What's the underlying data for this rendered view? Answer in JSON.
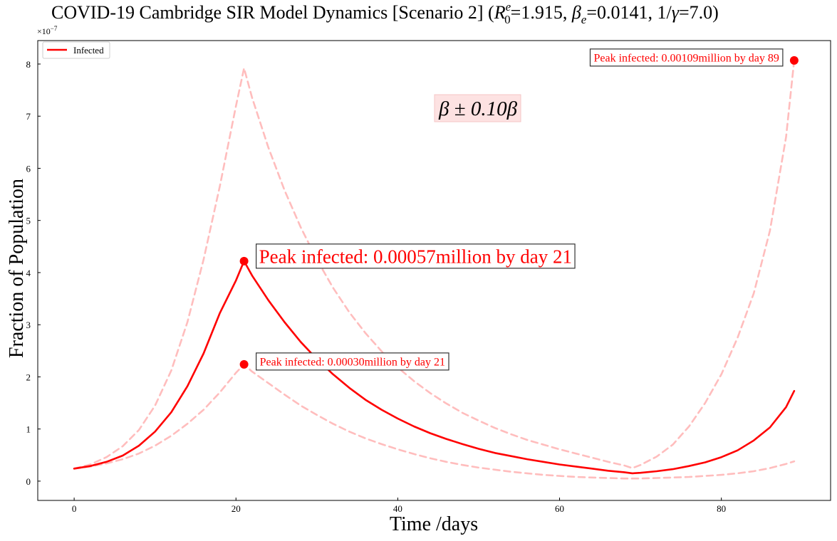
{
  "chart_data": {
    "type": "line",
    "title": {
      "prefix": "COVID-19 Cambridge SIR Model Dynamics [Scenario 2] (",
      "r0_symbol": "R",
      "r0_sup": "e",
      "r0_sub": "0",
      "r0_value": "=1.915, ",
      "beta_symbol": "β",
      "beta_sub": "e",
      "beta_value": "=0.0141, 1/",
      "gamma_symbol": "γ",
      "gamma_value": "=7.0)"
    },
    "xlabel": "Time /days",
    "ylabel": "Fraction of Population",
    "y_offset_label": "×10",
    "y_offset_exp": "−7",
    "xlim": [
      -4.5,
      93.5
    ],
    "ylim": [
      -0.37,
      8.45
    ],
    "x_ticks": [
      0,
      20,
      40,
      60,
      80
    ],
    "x_tick_labels": [
      "0",
      "20",
      "40",
      "60",
      "80"
    ],
    "y_ticks": [
      0,
      1,
      2,
      3,
      4,
      5,
      6,
      7,
      8
    ],
    "y_tick_labels": [
      "0",
      "1",
      "2",
      "3",
      "4",
      "5",
      "6",
      "7",
      "8"
    ],
    "grid": false,
    "legend": {
      "position": "top-left",
      "entries": [
        "Infected"
      ]
    },
    "band_label": "β ± 0.10β",
    "series": [
      {
        "name": "Infected",
        "role": "main",
        "color": "#ff0000",
        "style": "solid",
        "points": [
          [
            0,
            0.24
          ],
          [
            2,
            0.29
          ],
          [
            4,
            0.37
          ],
          [
            6,
            0.49
          ],
          [
            8,
            0.68
          ],
          [
            10,
            0.95
          ],
          [
            12,
            1.32
          ],
          [
            14,
            1.82
          ],
          [
            16,
            2.45
          ],
          [
            18,
            3.22
          ],
          [
            20,
            3.85
          ],
          [
            21,
            4.22
          ],
          [
            22,
            3.94
          ],
          [
            24,
            3.47
          ],
          [
            26,
            3.05
          ],
          [
            28,
            2.67
          ],
          [
            30,
            2.34
          ],
          [
            32,
            2.05
          ],
          [
            34,
            1.79
          ],
          [
            36,
            1.56
          ],
          [
            38,
            1.37
          ],
          [
            40,
            1.2
          ],
          [
            42,
            1.05
          ],
          [
            44,
            0.92
          ],
          [
            46,
            0.81
          ],
          [
            48,
            0.71
          ],
          [
            50,
            0.62
          ],
          [
            52,
            0.54
          ],
          [
            54,
            0.48
          ],
          [
            56,
            0.42
          ],
          [
            58,
            0.37
          ],
          [
            60,
            0.32
          ],
          [
            62,
            0.28
          ],
          [
            64,
            0.24
          ],
          [
            66,
            0.2
          ],
          [
            68,
            0.17
          ],
          [
            69,
            0.15
          ],
          [
            70,
            0.16
          ],
          [
            72,
            0.19
          ],
          [
            74,
            0.23
          ],
          [
            76,
            0.29
          ],
          [
            78,
            0.36
          ],
          [
            80,
            0.46
          ],
          [
            82,
            0.59
          ],
          [
            84,
            0.78
          ],
          [
            86,
            1.03
          ],
          [
            88,
            1.42
          ],
          [
            89,
            1.73
          ]
        ]
      },
      {
        "role": "upper-bound",
        "color": "#ffbdbd",
        "style": "dashed",
        "points": [
          [
            0,
            0.24
          ],
          [
            2,
            0.32
          ],
          [
            4,
            0.46
          ],
          [
            6,
            0.67
          ],
          [
            8,
            0.98
          ],
          [
            10,
            1.45
          ],
          [
            12,
            2.12
          ],
          [
            14,
            3.05
          ],
          [
            16,
            4.25
          ],
          [
            18,
            5.65
          ],
          [
            20,
            7.2
          ],
          [
            21,
            7.92
          ],
          [
            22,
            7.35
          ],
          [
            24,
            6.4
          ],
          [
            26,
            5.58
          ],
          [
            28,
            4.87
          ],
          [
            30,
            4.25
          ],
          [
            32,
            3.71
          ],
          [
            34,
            3.24
          ],
          [
            36,
            2.84
          ],
          [
            38,
            2.49
          ],
          [
            40,
            2.18
          ],
          [
            42,
            1.92
          ],
          [
            44,
            1.69
          ],
          [
            46,
            1.49
          ],
          [
            48,
            1.31
          ],
          [
            50,
            1.16
          ],
          [
            52,
            1.02
          ],
          [
            54,
            0.9
          ],
          [
            56,
            0.79
          ],
          [
            58,
            0.7
          ],
          [
            60,
            0.61
          ],
          [
            62,
            0.53
          ],
          [
            64,
            0.45
          ],
          [
            66,
            0.37
          ],
          [
            68,
            0.3
          ],
          [
            69,
            0.25
          ],
          [
            70,
            0.31
          ],
          [
            72,
            0.47
          ],
          [
            74,
            0.7
          ],
          [
            76,
            1.05
          ],
          [
            78,
            1.5
          ],
          [
            80,
            2.05
          ],
          [
            82,
            2.75
          ],
          [
            84,
            3.6
          ],
          [
            86,
            4.8
          ],
          [
            88,
            6.6
          ],
          [
            89,
            8.07
          ]
        ]
      },
      {
        "role": "lower-bound",
        "color": "#ffbdbd",
        "style": "dashed",
        "points": [
          [
            0,
            0.24
          ],
          [
            2,
            0.28
          ],
          [
            4,
            0.34
          ],
          [
            6,
            0.42
          ],
          [
            8,
            0.53
          ],
          [
            10,
            0.68
          ],
          [
            12,
            0.87
          ],
          [
            14,
            1.1
          ],
          [
            16,
            1.37
          ],
          [
            18,
            1.7
          ],
          [
            20,
            2.08
          ],
          [
            21,
            2.24
          ],
          [
            22,
            2.1
          ],
          [
            24,
            1.88
          ],
          [
            26,
            1.66
          ],
          [
            28,
            1.45
          ],
          [
            30,
            1.27
          ],
          [
            32,
            1.1
          ],
          [
            34,
            0.95
          ],
          [
            36,
            0.82
          ],
          [
            38,
            0.71
          ],
          [
            40,
            0.61
          ],
          [
            42,
            0.52
          ],
          [
            44,
            0.44
          ],
          [
            46,
            0.37
          ],
          [
            48,
            0.31
          ],
          [
            50,
            0.26
          ],
          [
            52,
            0.22
          ],
          [
            54,
            0.18
          ],
          [
            56,
            0.15
          ],
          [
            58,
            0.12
          ],
          [
            60,
            0.1
          ],
          [
            62,
            0.08
          ],
          [
            64,
            0.07
          ],
          [
            66,
            0.06
          ],
          [
            68,
            0.05
          ],
          [
            69,
            0.05
          ],
          [
            70,
            0.05
          ],
          [
            72,
            0.06
          ],
          [
            74,
            0.07
          ],
          [
            76,
            0.08
          ],
          [
            78,
            0.1
          ],
          [
            80,
            0.12
          ],
          [
            82,
            0.15
          ],
          [
            84,
            0.19
          ],
          [
            86,
            0.25
          ],
          [
            88,
            0.33
          ],
          [
            89,
            0.38
          ]
        ]
      }
    ],
    "peak_annotations": [
      {
        "x": 21,
        "y": 4.22,
        "text": "Peak infected: 0.00057million by day 21",
        "size": "large"
      },
      {
        "x": 21,
        "y": 2.24,
        "text": "Peak infected: 0.00030million by day 21",
        "size": "small"
      },
      {
        "x": 89,
        "y": 8.07,
        "text": "Peak infected: 0.00109million by day 89",
        "size": "small"
      }
    ],
    "colors": {
      "main": "#ff0000",
      "bound": "#ffbdbd",
      "band_label_bg": "#fde2e2",
      "band_label_border": "#f5c6c6",
      "annotation_text": "#ff0000",
      "axis": "#000000"
    }
  }
}
